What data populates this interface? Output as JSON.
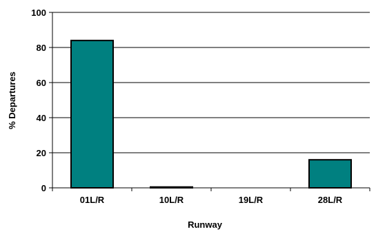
{
  "chart_data": {
    "type": "bar",
    "categories": [
      "01L/R",
      "10L/R",
      "19L/R",
      "28L/R"
    ],
    "values": [
      84,
      0.5,
      0,
      16
    ],
    "ylim": [
      0,
      100
    ],
    "yticks": [
      "0",
      "20",
      "40",
      "60",
      "80",
      "100"
    ],
    "xlabel": "Runway",
    "ylabel": "% Departures",
    "grid": true,
    "legend": "none",
    "colors": {
      "bar_fill": "#008080",
      "bar_stroke": "#000000",
      "grid": "#000000",
      "axis": "#000000"
    }
  }
}
